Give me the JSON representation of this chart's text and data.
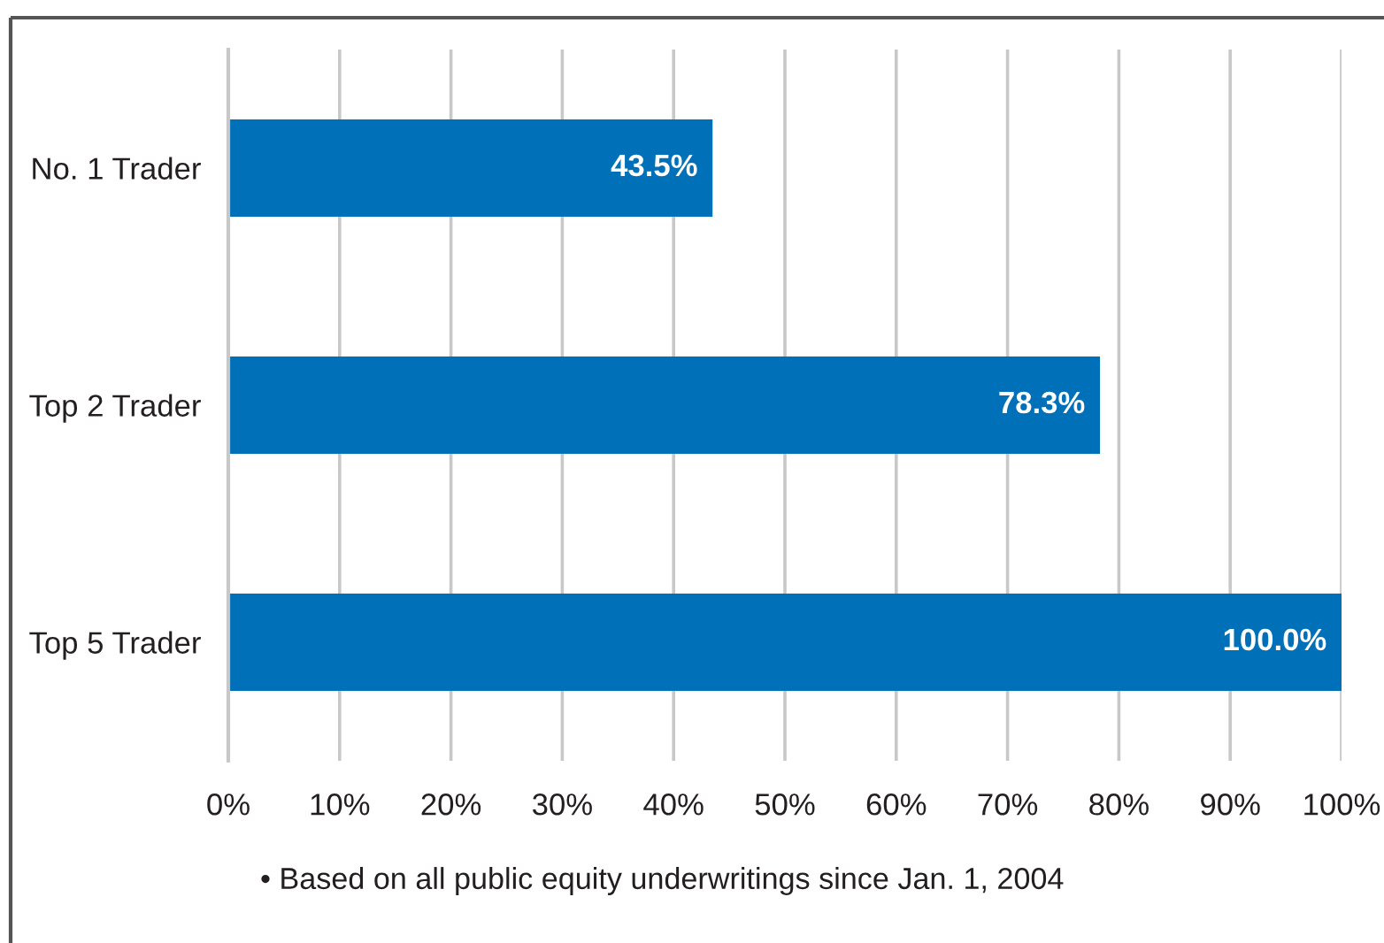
{
  "chart_data": {
    "type": "bar",
    "orientation": "horizontal",
    "categories": [
      "No. 1 Trader",
      "Top 2 Trader",
      "Top 5 Trader"
    ],
    "values": [
      43.5,
      78.3,
      100.0
    ],
    "color": "#0071b8",
    "value_labels": [
      "43.5%",
      "78.3%",
      "100.0%"
    ],
    "xlim": [
      0,
      100
    ],
    "xticks": [
      {
        "value": 0,
        "label": "0%"
      },
      {
        "value": 10,
        "label": "10%"
      },
      {
        "value": 20,
        "label": "20%"
      },
      {
        "value": 30,
        "label": "30%"
      },
      {
        "value": 40,
        "label": "40%"
      },
      {
        "value": 50,
        "label": "50%"
      },
      {
        "value": 60,
        "label": "60%"
      },
      {
        "value": 70,
        "label": "70%"
      },
      {
        "value": 80,
        "label": "80%"
      },
      {
        "value": 90,
        "label": "90%"
      },
      {
        "value": 100,
        "label": "100%"
      }
    ],
    "grid": "x",
    "annotations": [
      "• Based on all public equity underwritings since Jan. 1, 2004"
    ]
  }
}
